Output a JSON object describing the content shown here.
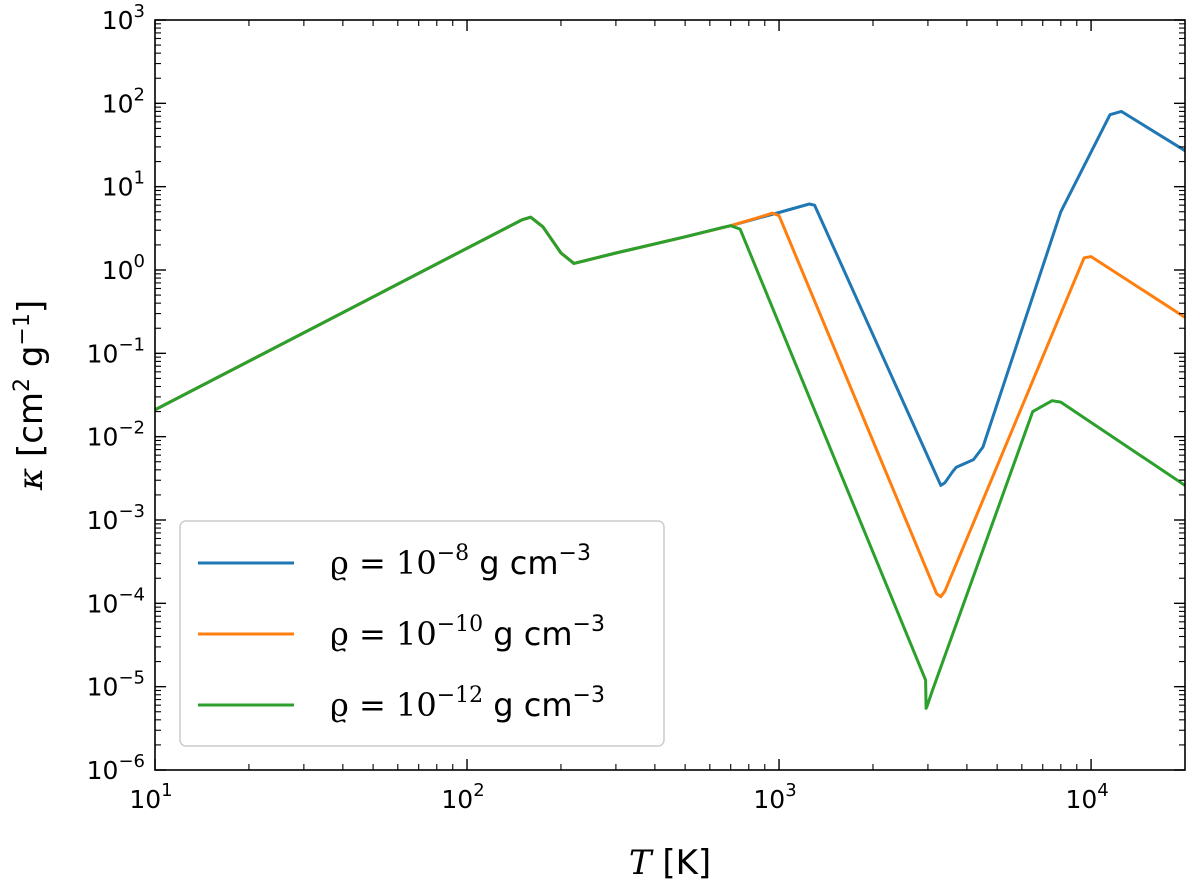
{
  "chart_data": {
    "type": "line",
    "xscale": "log",
    "yscale": "log",
    "xlim": [
      10,
      20000
    ],
    "ylim": [
      1e-06,
      1000
    ],
    "grid": false,
    "legend_position": "lower-left",
    "xlabel": {
      "symbol": "T",
      "unit": " [K]"
    },
    "ylabel": {
      "symbol": "κ",
      "unit": " [cm",
      "unit_exp": "2",
      "unit_mid": " g",
      "unit_exp2": "−1",
      "unit_end": "]"
    },
    "x_major_ticks": [
      {
        "value": 10,
        "base": "10",
        "exp": "1"
      },
      {
        "value": 100,
        "base": "10",
        "exp": "2"
      },
      {
        "value": 1000,
        "base": "10",
        "exp": "3"
      },
      {
        "value": 10000,
        "base": "10",
        "exp": "4"
      }
    ],
    "y_major_ticks": [
      {
        "value": 1e-06,
        "base": "10",
        "exp": "−6"
      },
      {
        "value": 1e-05,
        "base": "10",
        "exp": "−5"
      },
      {
        "value": 0.0001,
        "base": "10",
        "exp": "−4"
      },
      {
        "value": 0.001,
        "base": "10",
        "exp": "−3"
      },
      {
        "value": 0.01,
        "base": "10",
        "exp": "−2"
      },
      {
        "value": 0.1,
        "base": "10",
        "exp": "−1"
      },
      {
        "value": 1,
        "base": "10",
        "exp": "0"
      },
      {
        "value": 10,
        "base": "10",
        "exp": "1"
      },
      {
        "value": 100,
        "base": "10",
        "exp": "2"
      },
      {
        "value": 1000,
        "base": "10",
        "exp": "3"
      }
    ],
    "series": [
      {
        "name": "ρ = 10^-8 g cm^-3",
        "legend": {
          "pre": "ϱ = 10",
          "exp": "−8",
          "post": " g cm",
          "post_exp": "−3"
        },
        "color": "#1f77b4",
        "x": [
          10,
          150,
          160,
          175,
          200,
          220,
          300,
          500,
          700,
          1000,
          1250,
          1300,
          3300,
          3400,
          3600,
          3700,
          4200,
          4500,
          8000,
          11500,
          12500,
          20000
        ],
        "y": [
          0.021,
          4.0,
          4.3,
          3.3,
          1.6,
          1.2,
          1.6,
          2.5,
          3.4,
          4.9,
          6.2,
          6.0,
          0.0026,
          0.0028,
          0.0038,
          0.0043,
          0.0053,
          0.0075,
          5.0,
          73,
          80,
          27
        ]
      },
      {
        "name": "ρ = 10^-10 g cm^-3",
        "legend": {
          "pre": "ϱ = 10",
          "exp": "−10",
          "post": " g cm",
          "post_exp": "−3"
        },
        "color": "#ff7f0e",
        "x": [
          10,
          150,
          160,
          175,
          200,
          220,
          300,
          500,
          700,
          900,
          950,
          1000,
          3200,
          3300,
          3400,
          8000,
          9500,
          10000,
          20000
        ],
        "y": [
          0.021,
          4.0,
          4.3,
          3.3,
          1.6,
          1.2,
          1.6,
          2.5,
          3.4,
          4.5,
          4.8,
          4.5,
          0.00013,
          0.00012,
          0.00014,
          0.3,
          1.4,
          1.45,
          0.27
        ]
      },
      {
        "name": "ρ = 10^-12 g cm^-3",
        "legend": {
          "pre": "ϱ = 10",
          "exp": "−12",
          "post": " g cm",
          "post_exp": "−3"
        },
        "color": "#2ca02c",
        "x": [
          10,
          150,
          160,
          175,
          200,
          220,
          300,
          500,
          650,
          700,
          750,
          2950,
          2960,
          2980,
          3100,
          6500,
          7500,
          8000,
          20000
        ],
        "y": [
          0.021,
          4.0,
          4.3,
          3.3,
          1.6,
          1.2,
          1.6,
          2.5,
          3.2,
          3.4,
          3.1,
          1.2e-05,
          5.5e-06,
          5.8e-06,
          9e-06,
          0.02,
          0.027,
          0.026,
          0.0026
        ]
      }
    ]
  }
}
